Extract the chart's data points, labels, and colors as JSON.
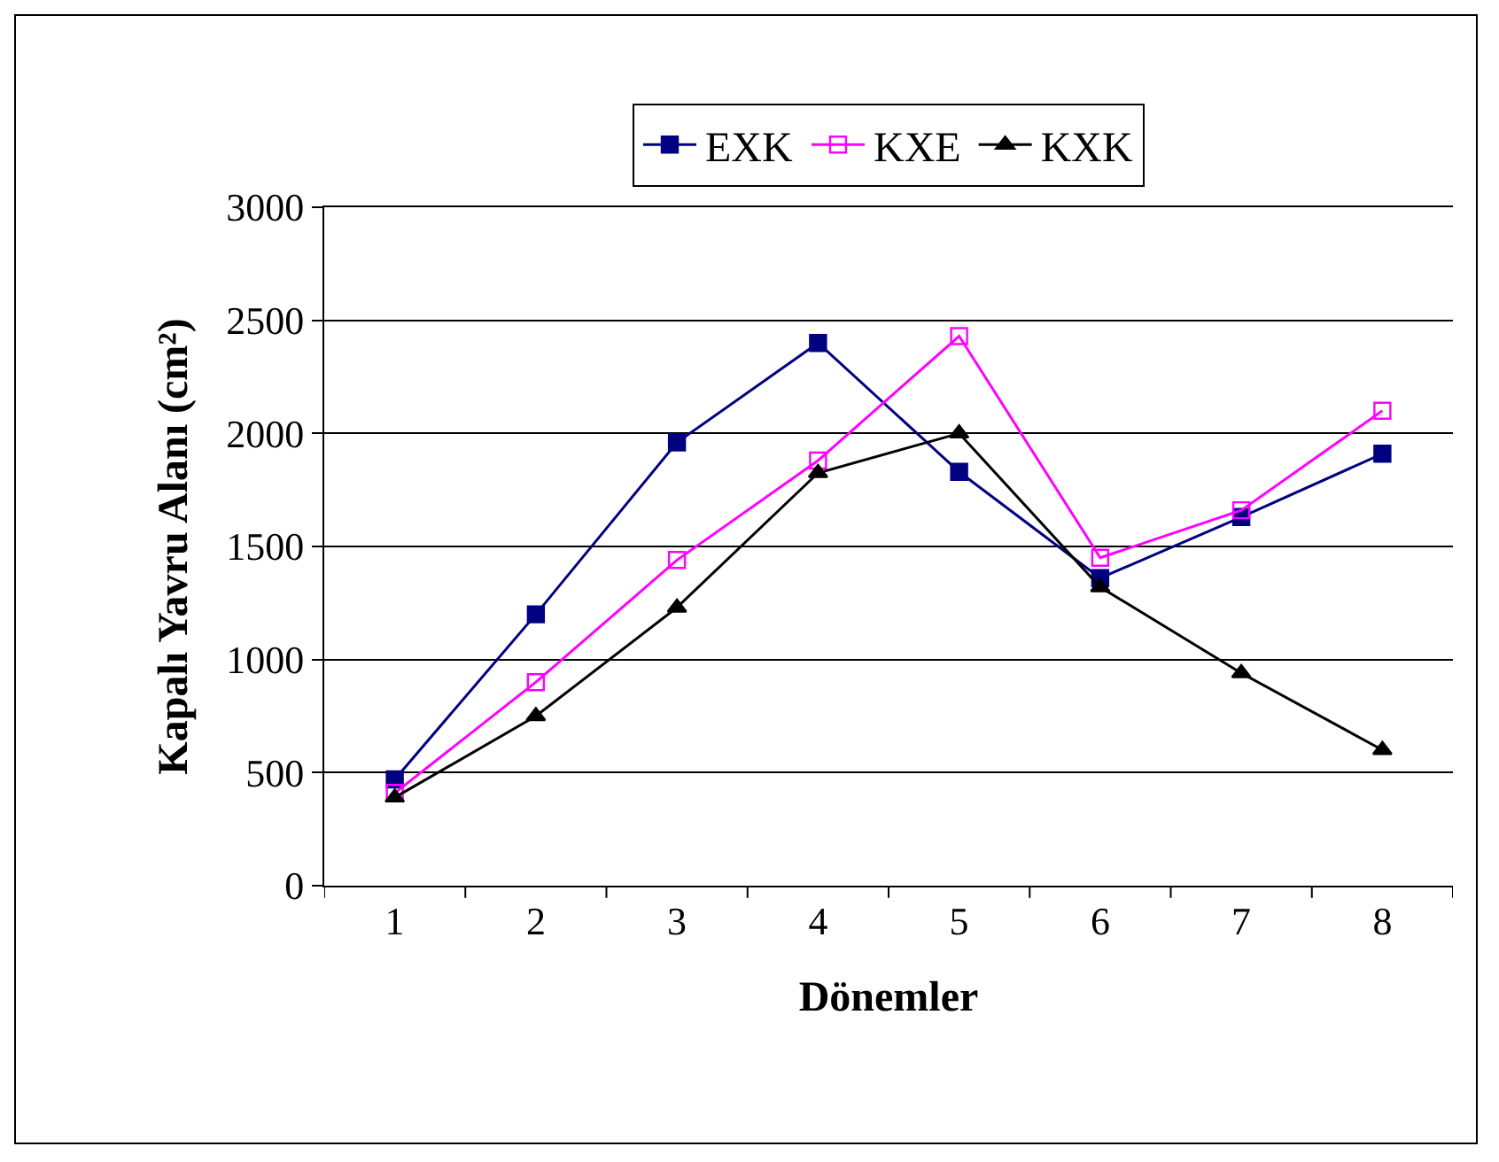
{
  "chart_data": {
    "type": "line",
    "xlabel": "Dönemler",
    "ylabel": "Kapalı Yavru Alanı (cm²)",
    "categories": [
      "1",
      "2",
      "3",
      "4",
      "5",
      "6",
      "7",
      "8"
    ],
    "series": [
      {
        "name": "EXK",
        "color": "#000080",
        "marker": "square",
        "values": [
          470,
          1200,
          1960,
          2400,
          1830,
          1360,
          1630,
          1910
        ]
      },
      {
        "name": "KXE",
        "color": "#ff00ff",
        "marker": "square-open",
        "values": [
          410,
          900,
          1440,
          1880,
          2430,
          1450,
          1660,
          2100
        ]
      },
      {
        "name": "KXK",
        "color": "#000000",
        "marker": "triangle",
        "values": [
          390,
          750,
          1230,
          1825,
          2000,
          1320,
          940,
          600
        ]
      }
    ],
    "ylim": [
      0,
      3000
    ],
    "yticks": [
      0,
      500,
      1000,
      1500,
      2000,
      2500,
      3000
    ],
    "grid": "y",
    "legend": "top"
  }
}
